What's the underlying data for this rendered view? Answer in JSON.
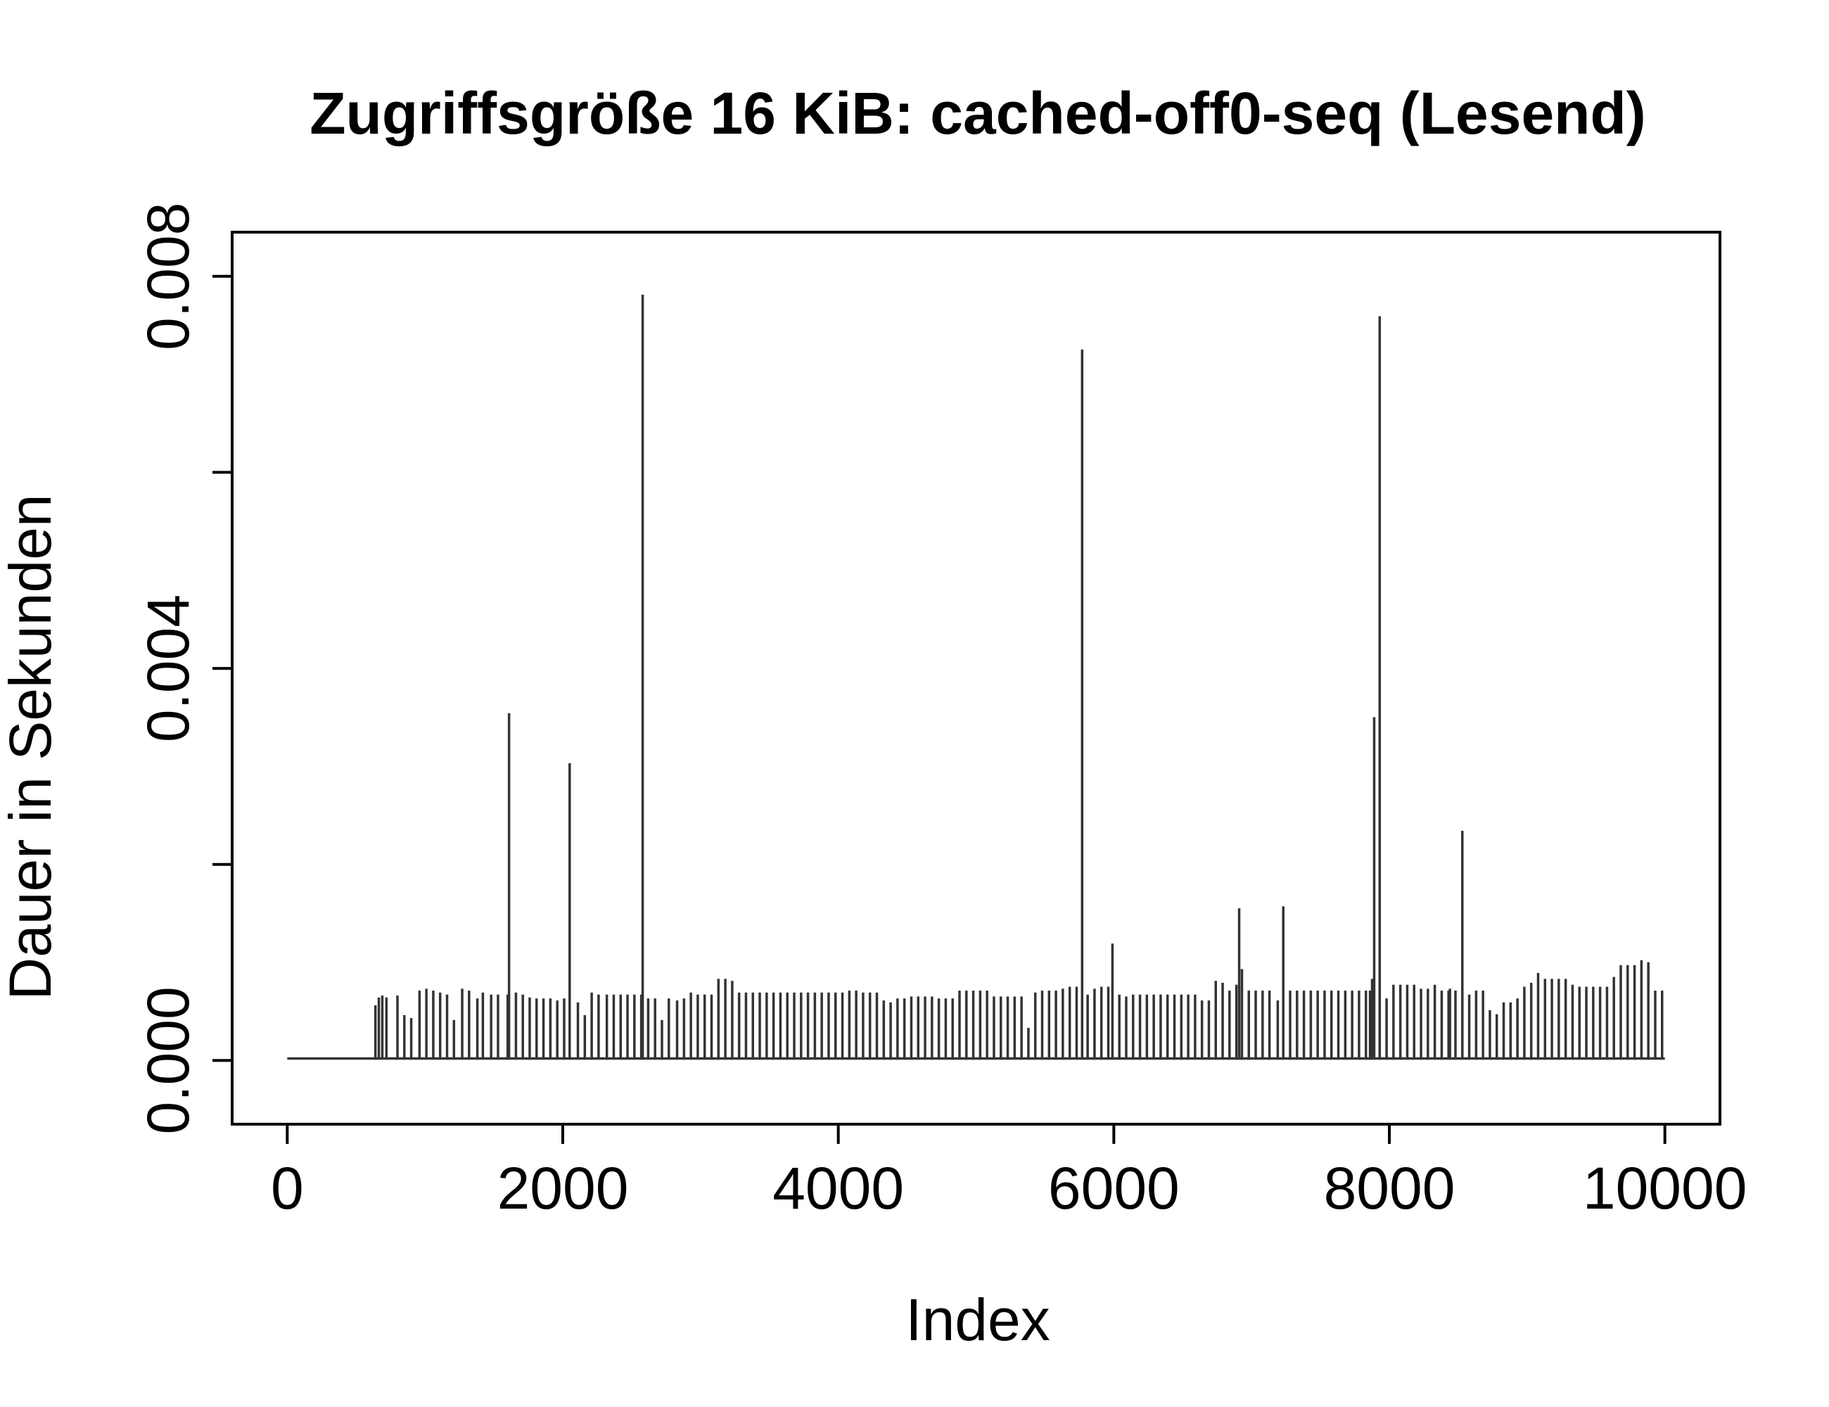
{
  "chart_data": {
    "type": "line",
    "title": "Zugriffsgröße 16 KiB: cached-off0-seq (Lesend)",
    "xlabel": "Index",
    "ylabel": "Dauer in Sekunden",
    "xlim": [
      -400,
      10400
    ],
    "ylim": [
      -0.00065,
      0.00845
    ],
    "x_ticks": [
      0,
      2000,
      4000,
      6000,
      8000,
      10000
    ],
    "x_tick_labels": [
      "0",
      "2000",
      "4000",
      "6000",
      "8000",
      "10000"
    ],
    "y_ticks": [
      0,
      0.002,
      0.004,
      0.006,
      0.008
    ],
    "y_tick_labels": [
      "0.000",
      "",
      "0.004",
      "",
      "0.008"
    ],
    "line_color": "#333333",
    "baseline": 2e-05,
    "grid": false,
    "legend": "none",
    "spikes": {
      "x": [
        640,
        665,
        690,
        720,
        800,
        850,
        900,
        960,
        1010,
        1060,
        1110,
        1160,
        1210,
        1270,
        1320,
        1380,
        1420,
        1480,
        1530,
        1600,
        1610,
        1660,
        1710,
        1760,
        1810,
        1860,
        1910,
        1960,
        2010,
        2050,
        2110,
        2160,
        2210,
        2260,
        2320,
        2370,
        2420,
        2470,
        2520,
        2570,
        2580,
        2620,
        2670,
        2720,
        2770,
        2830,
        2880,
        2930,
        2980,
        3030,
        3080,
        3130,
        3180,
        3230,
        3280,
        3330,
        3380,
        3430,
        3480,
        3530,
        3580,
        3630,
        3680,
        3730,
        3780,
        3830,
        3880,
        3930,
        3980,
        4030,
        4080,
        4130,
        4180,
        4230,
        4280,
        4330,
        4380,
        4430,
        4480,
        4530,
        4580,
        4630,
        4680,
        4730,
        4780,
        4830,
        4880,
        4930,
        4980,
        5030,
        5080,
        5130,
        5180,
        5230,
        5280,
        5330,
        5380,
        5430,
        5480,
        5530,
        5580,
        5630,
        5680,
        5730,
        5770,
        5810,
        5860,
        5910,
        5960,
        5990,
        6040,
        6090,
        6140,
        6190,
        6240,
        6290,
        6340,
        6390,
        6440,
        6490,
        6540,
        6590,
        6640,
        6690,
        6740,
        6790,
        6840,
        6890,
        6910,
        6930,
        6980,
        7030,
        7080,
        7130,
        7190,
        7230,
        7280,
        7330,
        7380,
        7430,
        7480,
        7530,
        7580,
        7630,
        7680,
        7730,
        7780,
        7830,
        7860,
        7875,
        7890,
        7930,
        7980,
        8030,
        8080,
        8130,
        8180,
        8230,
        8280,
        8330,
        8380,
        8430,
        8440,
        8480,
        8530,
        8580,
        8630,
        8680,
        8730,
        8780,
        8830,
        8880,
        8930,
        8980,
        9030,
        9080,
        9130,
        9180,
        9230,
        9280,
        9330,
        9380,
        9430,
        9480,
        9530,
        9580,
        9630,
        9680,
        9730,
        9780,
        9830,
        9880,
        9930,
        9980
      ],
      "y": [
        0.00055,
        0.00063,
        0.00065,
        0.00063,
        0.00065,
        0.00045,
        0.00042,
        0.0007,
        0.00072,
        0.0007,
        0.00068,
        0.00066,
        0.0004,
        0.00072,
        0.0007,
        0.00062,
        0.00068,
        0.00066,
        0.00066,
        0.00066,
        0.00353,
        0.00068,
        0.00066,
        0.00063,
        0.00062,
        0.00062,
        0.00062,
        0.0006,
        0.00062,
        0.00302,
        0.00058,
        0.00045,
        0.00068,
        0.00066,
        0.00066,
        0.00066,
        0.00066,
        0.00066,
        0.00066,
        0.00066,
        0.0078,
        0.00062,
        0.00062,
        0.0004,
        0.00062,
        0.0006,
        0.00062,
        0.00068,
        0.00066,
        0.00066,
        0.00066,
        0.00082,
        0.00082,
        0.0008,
        0.00068,
        0.00068,
        0.00068,
        0.00068,
        0.00068,
        0.00068,
        0.00068,
        0.00068,
        0.00068,
        0.00068,
        0.00068,
        0.00068,
        0.00068,
        0.00068,
        0.00068,
        0.00068,
        0.0007,
        0.0007,
        0.00068,
        0.00068,
        0.00068,
        0.0006,
        0.00058,
        0.00062,
        0.00062,
        0.00064,
        0.00064,
        0.00064,
        0.00064,
        0.00062,
        0.00062,
        0.00062,
        0.0007,
        0.0007,
        0.0007,
        0.0007,
        0.0007,
        0.00064,
        0.00064,
        0.00064,
        0.00064,
        0.00064,
        0.00032,
        0.00068,
        0.0007,
        0.0007,
        0.0007,
        0.00072,
        0.00074,
        0.00074,
        0.00724,
        0.00066,
        0.00072,
        0.00074,
        0.00074,
        0.00118,
        0.00066,
        0.00064,
        0.00066,
        0.00066,
        0.00066,
        0.00066,
        0.00066,
        0.00066,
        0.00066,
        0.00066,
        0.00066,
        0.00066,
        0.0006,
        0.0006,
        0.0008,
        0.00078,
        0.0007,
        0.00076,
        0.00154,
        0.00092,
        0.0007,
        0.0007,
        0.0007,
        0.0007,
        0.0006,
        0.00156,
        0.0007,
        0.0007,
        0.0007,
        0.0007,
        0.0007,
        0.0007,
        0.0007,
        0.0007,
        0.0007,
        0.0007,
        0.0007,
        0.0007,
        0.0007,
        0.00082,
        0.00349,
        0.00758,
        0.00062,
        0.00076,
        0.00076,
        0.00076,
        0.00076,
        0.00072,
        0.00072,
        0.00076,
        0.0007,
        0.0007,
        0.00072,
        0.0007,
        0.00233,
        0.00066,
        0.0007,
        0.0007,
        0.0005,
        0.00046,
        0.00058,
        0.00058,
        0.00062,
        0.00074,
        0.00078,
        0.00088,
        0.00082,
        0.00082,
        0.00082,
        0.00082,
        0.00076,
        0.00074,
        0.00074,
        0.00074,
        0.00074,
        0.00074,
        0.00084,
        0.00096,
        0.00096,
        0.00096,
        0.00101,
        0.00099,
        0.0007,
        0.0007
      ]
    }
  }
}
